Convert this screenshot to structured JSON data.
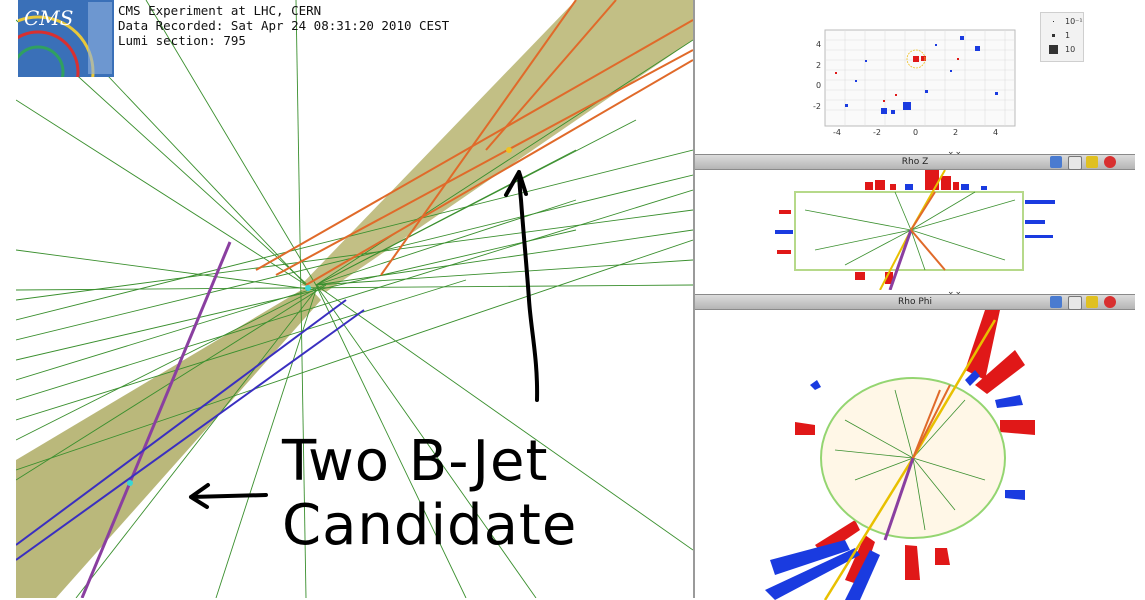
{
  "event_info": {
    "line1": "CMS Experiment at LHC, CERN",
    "line2": "Data Recorded: Sat Apr 24 08:31:20 2010 CEST",
    "line3": "Lumi section: 795"
  },
  "logo": {
    "text": "CMS"
  },
  "annotation": {
    "line1": "Two B-Jet",
    "line2": "Candidate"
  },
  "lego_panel": {
    "y_ticks": [
      "4",
      "2",
      "0",
      "-2"
    ],
    "x_ticks": [
      "-4",
      "-2",
      "0",
      "2",
      "4"
    ],
    "legend": [
      {
        "label": "10⁻¹"
      },
      {
        "label": "1"
      },
      {
        "label": "10"
      }
    ]
  },
  "rhoz_panel": {
    "title": "Rho Z"
  },
  "rhophi_panel": {
    "title": "Rho Phi"
  },
  "icons": [
    "info-icon",
    "save-icon",
    "expand-icon",
    "close-icon"
  ],
  "colors": {
    "cone": "#a8a65e",
    "track_orange": "#e06a2a",
    "track_purple": "#7a3fa0",
    "track_blue": "#3333cc",
    "track_green": "#2e8b2e",
    "ecal": "#e01818",
    "hcal": "#1a3be0",
    "muon": "#d8c000"
  }
}
